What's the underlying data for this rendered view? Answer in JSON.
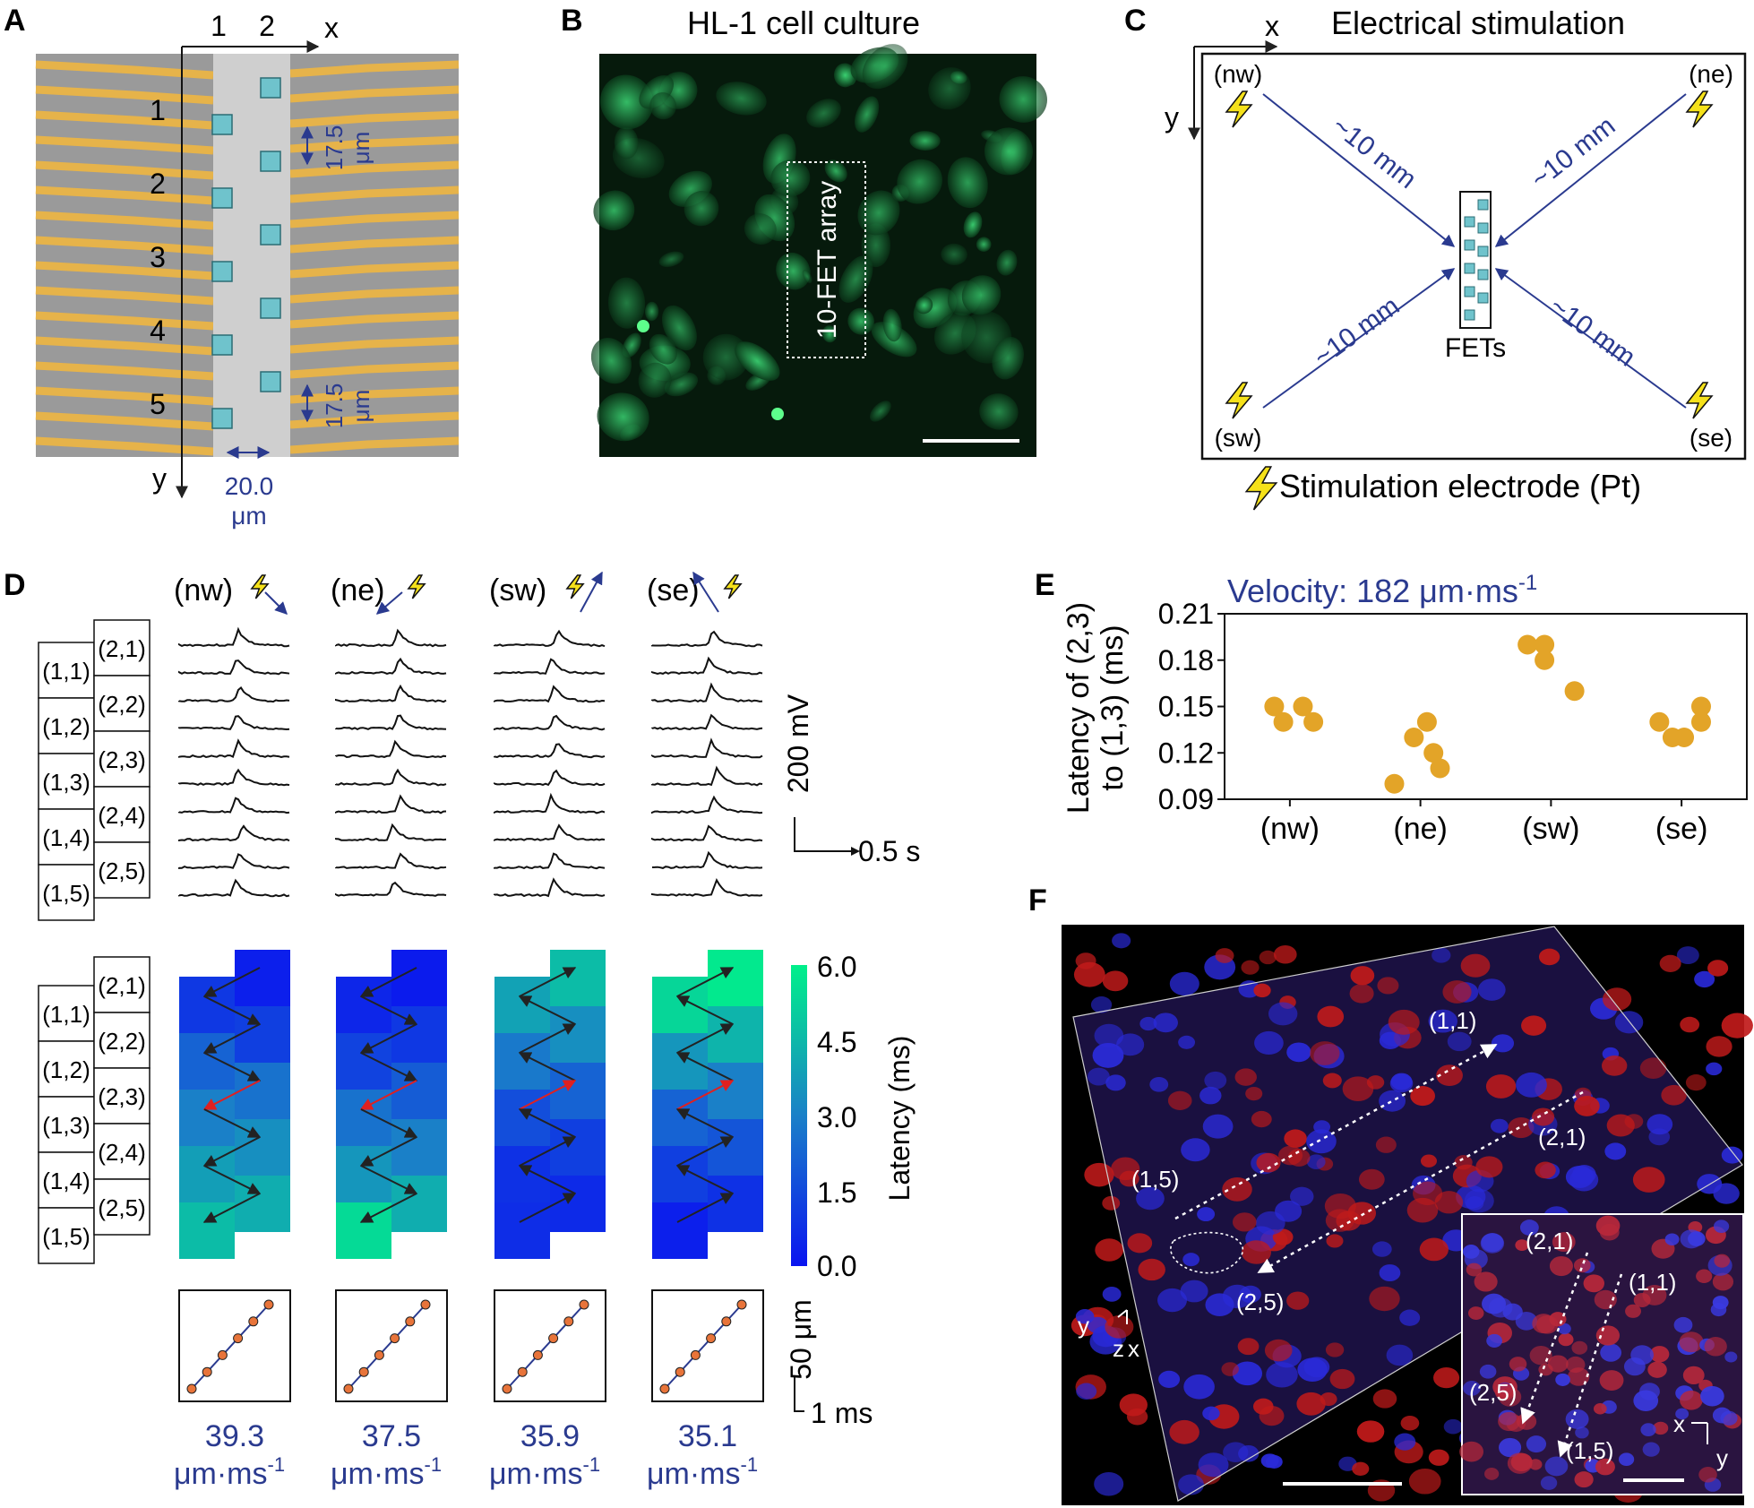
{
  "panel_letters": [
    "A",
    "B",
    "C",
    "D",
    "E",
    "F"
  ],
  "panel_a": {
    "col_labels": [
      "1",
      "2"
    ],
    "x_axis": "x",
    "y_axis": "y",
    "row_labels": [
      "1",
      "2",
      "3",
      "4",
      "5"
    ],
    "spacing_value": "17.5",
    "spacing_unit": "μm",
    "width_value": "20.0",
    "width_unit": "μm"
  },
  "panel_b": {
    "title": "HL-1 cell culture",
    "array_label": "10-FET array"
  },
  "panel_c": {
    "title": "Electrical stimulation",
    "x_axis": "x",
    "y_axis": "y",
    "corners": [
      "(nw)",
      "(ne)",
      "(sw)",
      "(se)"
    ],
    "distance_label": "~10 mm",
    "center_label": "FETs",
    "legend": "Stimulation electrode (Pt)"
  },
  "panel_d": {
    "conditions": [
      "(nw)",
      "(ne)",
      "(sw)",
      "(se)"
    ],
    "left_col_labels": [
      "(1,1)",
      "(1,2)",
      "(1,3)",
      "(1,4)",
      "(1,5)"
    ],
    "right_col_labels": [
      "(2,1)",
      "(2,2)",
      "(2,3)",
      "(2,4)",
      "(2,5)"
    ],
    "voltage_scale": "200 mV",
    "time_scale": "0.5 s",
    "colorbar_label": "Latency (ms)",
    "colorbar_ticks": [
      "6.0",
      "4.5",
      "3.0",
      "1.5",
      "0.0"
    ],
    "distance_scale": "50 μm",
    "latency_scale": "1 ms",
    "velocities": [
      "39.3",
      "37.5",
      "35.9",
      "35.1"
    ],
    "velocity_unit": "μm·ms",
    "velocity_exp": "-1",
    "latency_maps": [
      {
        "left": [
          1.0,
          2.2,
          3.0,
          3.8,
          4.6
        ],
        "right": [
          0.3,
          1.2,
          2.6,
          3.4,
          4.2
        ]
      },
      {
        "left": [
          0.5,
          1.3,
          2.6,
          3.6,
          5.4
        ],
        "right": [
          0.2,
          1.0,
          2.0,
          3.0,
          4.2
        ]
      },
      {
        "left": [
          3.9,
          2.8,
          1.6,
          0.8,
          0.7
        ],
        "right": [
          4.6,
          3.4,
          2.2,
          1.2,
          0.6
        ]
      },
      {
        "left": [
          5.3,
          3.6,
          2.2,
          1.2,
          0.3
        ],
        "right": [
          5.8,
          4.4,
          3.0,
          1.8,
          0.8
        ]
      }
    ]
  },
  "chart_data": {
    "type": "scatter",
    "title": "Velocity: 182 μm·ms",
    "title_exp": "-1",
    "ylabel_line1": "Latency of (2,3)",
    "ylabel_line2": "to (1,3) (ms)",
    "categories": [
      "(nw)",
      "(ne)",
      "(sw)",
      "(se)"
    ],
    "yticks": [
      "0.21",
      "0.18",
      "0.15",
      "0.12",
      "0.09"
    ],
    "ylim": [
      0.09,
      0.21
    ],
    "points": [
      {
        "cat": 0,
        "off": -0.12,
        "y": 0.15
      },
      {
        "cat": 0,
        "off": -0.05,
        "y": 0.14
      },
      {
        "cat": 0,
        "off": 0.1,
        "y": 0.15
      },
      {
        "cat": 0,
        "off": 0.18,
        "y": 0.14
      },
      {
        "cat": 1,
        "off": -0.2,
        "y": 0.1
      },
      {
        "cat": 1,
        "off": -0.05,
        "y": 0.13
      },
      {
        "cat": 1,
        "off": 0.05,
        "y": 0.14
      },
      {
        "cat": 1,
        "off": 0.1,
        "y": 0.12
      },
      {
        "cat": 1,
        "off": 0.15,
        "y": 0.11
      },
      {
        "cat": 2,
        "off": -0.18,
        "y": 0.19
      },
      {
        "cat": 2,
        "off": -0.05,
        "y": 0.18
      },
      {
        "cat": 2,
        "off": -0.05,
        "y": 0.19
      },
      {
        "cat": 2,
        "off": 0.18,
        "y": 0.16
      },
      {
        "cat": 3,
        "off": -0.17,
        "y": 0.14
      },
      {
        "cat": 3,
        "off": -0.07,
        "y": 0.13
      },
      {
        "cat": 3,
        "off": 0.02,
        "y": 0.13
      },
      {
        "cat": 3,
        "off": 0.15,
        "y": 0.14
      },
      {
        "cat": 3,
        "off": 0.15,
        "y": 0.15
      }
    ],
    "point_color": "#e3a428",
    "title_color": "#2a3a8f"
  },
  "panel_f": {
    "labels": [
      "(1,1)",
      "(2,1)",
      "(1,5)",
      "(2,5)"
    ],
    "inset_labels": [
      "(2,1)",
      "(1,1)",
      "(2,5)",
      "(1,5)"
    ],
    "axes_main": [
      "y",
      "z",
      "x"
    ],
    "axes_inset": [
      "x",
      "y"
    ]
  }
}
